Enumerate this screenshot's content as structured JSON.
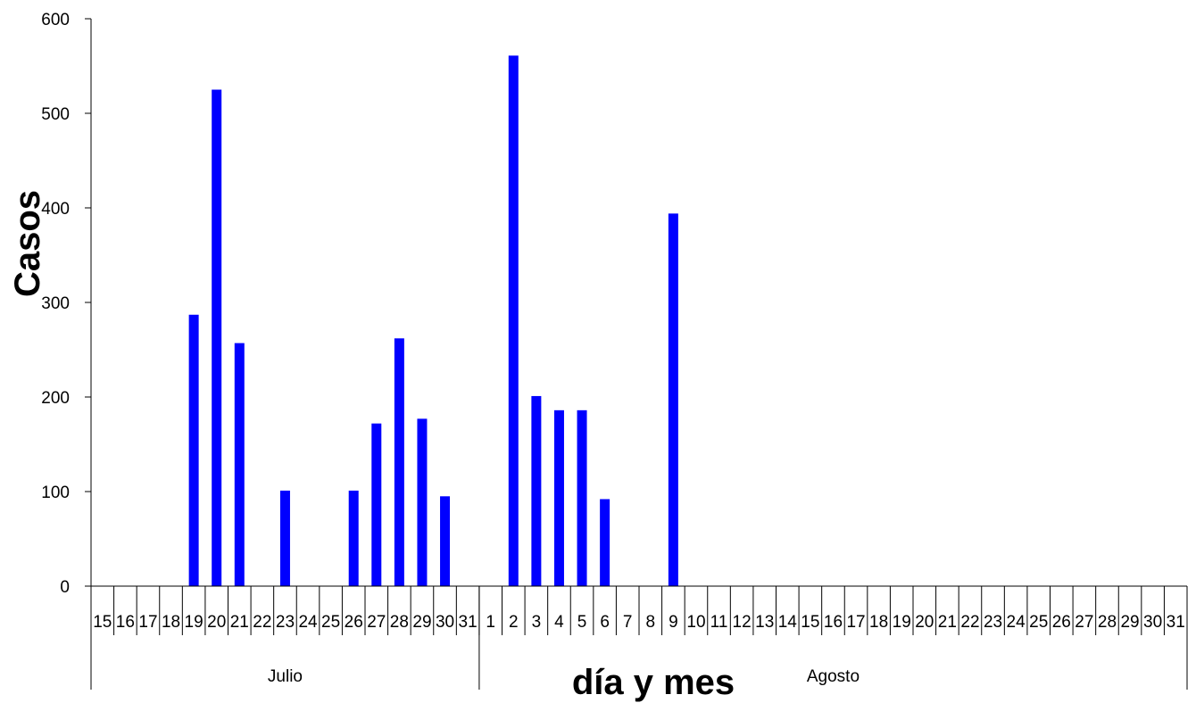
{
  "chart_data": {
    "type": "bar",
    "xlabel": "día y mes",
    "ylabel": "Casos",
    "ylim": [
      0,
      600
    ],
    "yticks": [
      0,
      100,
      200,
      300,
      400,
      500,
      600
    ],
    "bar_color": "#0000ff",
    "grid": false,
    "months": [
      {
        "name": "Julio",
        "days": [
          "15",
          "16",
          "17",
          "18",
          "19",
          "20",
          "21",
          "22",
          "23",
          "24",
          "25",
          "26",
          "27",
          "28",
          "29",
          "30",
          "31"
        ]
      },
      {
        "name": "Agosto",
        "days": [
          "1",
          "2",
          "3",
          "4",
          "5",
          "6",
          "7",
          "8",
          "9",
          "10",
          "11",
          "12",
          "13",
          "14",
          "15",
          "16",
          "17",
          "18",
          "19",
          "20",
          "21",
          "22",
          "23",
          "24",
          "25",
          "26",
          "27",
          "28",
          "29",
          "30",
          "31"
        ]
      }
    ],
    "categories": [
      "Julio 15",
      "Julio 16",
      "Julio 17",
      "Julio 18",
      "Julio 19",
      "Julio 20",
      "Julio 21",
      "Julio 22",
      "Julio 23",
      "Julio 24",
      "Julio 25",
      "Julio 26",
      "Julio 27",
      "Julio 28",
      "Julio 29",
      "Julio 30",
      "Julio 31",
      "Agosto 1",
      "Agosto 2",
      "Agosto 3",
      "Agosto 4",
      "Agosto 5",
      "Agosto 6",
      "Agosto 7",
      "Agosto 8",
      "Agosto 9",
      "Agosto 10",
      "Agosto 11",
      "Agosto 12",
      "Agosto 13",
      "Agosto 14",
      "Agosto 15",
      "Agosto 16",
      "Agosto 17",
      "Agosto 18",
      "Agosto 19",
      "Agosto 20",
      "Agosto 21",
      "Agosto 22",
      "Agosto 23",
      "Agosto 24",
      "Agosto 25",
      "Agosto 26",
      "Agosto 27",
      "Agosto 28",
      "Agosto 29",
      "Agosto 30",
      "Agosto 31"
    ],
    "values": [
      0,
      0,
      0,
      0,
      287,
      525,
      257,
      0,
      101,
      0,
      0,
      101,
      172,
      262,
      177,
      95,
      0,
      0,
      561,
      201,
      186,
      186,
      92,
      0,
      0,
      394,
      0,
      0,
      0,
      0,
      0,
      0,
      0,
      0,
      0,
      0,
      0,
      0,
      0,
      0,
      0,
      0,
      0,
      0,
      0,
      0,
      0,
      0
    ]
  }
}
